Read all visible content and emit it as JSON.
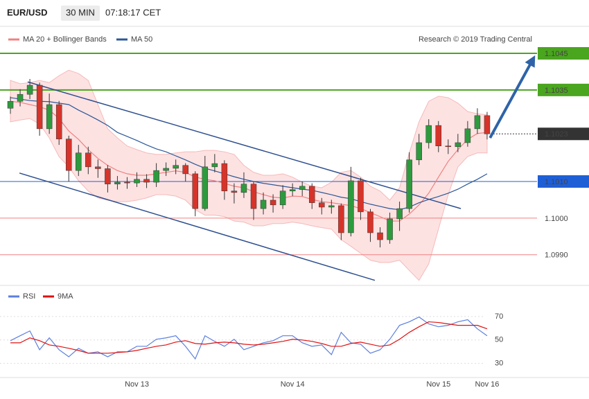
{
  "header": {
    "symbol": "EUR/USD",
    "interval": "30 MIN",
    "time": "07:18:17 CET",
    "credit": "Research © 2019 Trading Central"
  },
  "chart_data": [
    {
      "type": "candlestick",
      "up_color": "#2e9a3e",
      "down_color": "#d6342a",
      "ylim": [
        1.0982,
        1.1052
      ],
      "open": [
        1.103,
        1.10319,
        1.10338,
        1.10363,
        1.10244,
        1.1031,
        1.10216,
        1.1013,
        1.10178,
        1.1014,
        1.10135,
        1.10093,
        1.10098,
        1.10096,
        1.10106,
        1.10098,
        1.1013,
        1.10136,
        1.10144,
        1.10121,
        1.10026,
        1.1014,
        1.10149,
        1.10074,
        1.1007,
        1.10093,
        1.10026,
        1.10049,
        1.10036,
        1.10074,
        1.10078,
        1.10087,
        1.10042,
        1.1003,
        1.10034,
        1.0996,
        1.10102,
        1.10017,
        1.0996,
        1.09941,
        1.09998,
        1.10026,
        1.10159,
        1.10206,
        1.10253,
        1.10197,
        1.10195,
        1.10206,
        1.10244,
        1.1028
      ],
      "high": [
        1.10332,
        1.10352,
        1.1038,
        1.1037,
        1.1034,
        1.1032,
        1.10225,
        1.102,
        1.10195,
        1.1016,
        1.10145,
        1.10115,
        1.10112,
        1.10125,
        1.1012,
        1.1015,
        1.10152,
        1.1016,
        1.1015,
        1.10128,
        1.1017,
        1.10175,
        1.10158,
        1.10095,
        1.10125,
        1.101,
        1.1007,
        1.10065,
        1.1009,
        1.10095,
        1.101,
        1.10095,
        1.10055,
        1.1005,
        1.1004,
        1.1014,
        1.1011,
        1.10025,
        1.09975,
        1.10015,
        1.10045,
        1.1018,
        1.1023,
        1.1027,
        1.10265,
        1.10215,
        1.1023,
        1.10265,
        1.103,
        1.1029
      ],
      "low": [
        1.10285,
        1.10305,
        1.10325,
        1.10225,
        1.1023,
        1.102,
        1.101,
        1.10115,
        1.1012,
        1.1011,
        1.1007,
        1.10078,
        1.1008,
        1.10085,
        1.10082,
        1.10085,
        1.10115,
        1.1012,
        1.101,
        1.10005,
        1.1002,
        1.10125,
        1.1005,
        1.1004,
        1.10055,
        1.09995,
        1.1001,
        1.10015,
        1.10025,
        1.1006,
        1.1006,
        1.10025,
        1.1001,
        1.10012,
        1.0994,
        1.0995,
        1.09995,
        1.09935,
        1.0992,
        1.0993,
        1.09965,
        1.10015,
        1.10145,
        1.1019,
        1.1018,
        1.10175,
        1.1018,
        1.10195,
        1.1023,
        1.10215
      ],
      "close": [
        1.10319,
        1.10338,
        1.10363,
        1.10244,
        1.1031,
        1.10216,
        1.1013,
        1.10178,
        1.1014,
        1.10135,
        1.10093,
        1.10098,
        1.10096,
        1.10106,
        1.10098,
        1.1013,
        1.10136,
        1.10144,
        1.10121,
        1.10026,
        1.1014,
        1.10149,
        1.10074,
        1.1007,
        1.10093,
        1.10026,
        1.10049,
        1.10036,
        1.10074,
        1.10078,
        1.10087,
        1.10042,
        1.1003,
        1.10034,
        1.0996,
        1.10102,
        1.10017,
        1.0996,
        1.09941,
        1.09998,
        1.10026,
        1.10159,
        1.10206,
        1.10253,
        1.10197,
        1.10195,
        1.10206,
        1.10244,
        1.1028,
        1.1023
      ],
      "bands": {
        "name": "MA 20 + Bollinger Bands",
        "color": "#f08080",
        "fill": "#fde2e2",
        "ma": [
          1.10319,
          1.10316,
          1.1031,
          1.10304,
          1.10295,
          1.10272,
          1.10238,
          1.10215,
          1.10187,
          1.10163,
          1.10144,
          1.1013,
          1.10121,
          1.10117,
          1.10117,
          1.10121,
          1.10125,
          1.10129,
          1.10125,
          1.10112,
          1.10106,
          1.10102,
          1.10095,
          1.10087,
          1.10083,
          1.10072,
          1.10064,
          1.10057,
          1.10055,
          1.1006,
          1.10059,
          1.10051,
          1.10045,
          1.10042,
          1.10038,
          1.10034,
          1.10026,
          1.10015,
          1.10004,
          1.09992,
          1.09992,
          1.10011,
          1.10036,
          1.10068,
          1.10112,
          1.10155,
          1.10187,
          1.10215,
          1.10231,
          1.10234
        ],
        "upper": [
          1.10376,
          1.10367,
          1.1037,
          1.10376,
          1.1037,
          1.10389,
          1.10404,
          1.10395,
          1.10376,
          1.1031,
          1.10244,
          1.10219,
          1.10197,
          1.10187,
          1.10178,
          1.10174,
          1.10174,
          1.10178,
          1.10181,
          1.10181,
          1.10185,
          1.10185,
          1.10181,
          1.10174,
          1.10144,
          1.10125,
          1.10117,
          1.10117,
          1.10121,
          1.10112,
          1.10098,
          1.10087,
          1.10083,
          1.10098,
          1.10125,
          1.1013,
          1.10112,
          1.10087,
          1.10074,
          1.10049,
          1.10083,
          1.10178,
          1.10263,
          1.10319,
          1.10333,
          1.10329,
          1.10314,
          1.10291,
          1.10285,
          1.10282
        ],
        "lower": [
          1.10263,
          1.10268,
          1.10272,
          1.10257,
          1.10219,
          1.10168,
          1.1014,
          1.10102,
          1.10074,
          1.10055,
          1.10049,
          1.10045,
          1.10045,
          1.10049,
          1.10055,
          1.10064,
          1.10064,
          1.1006,
          1.10049,
          1.10023,
          1.10008,
          1.10008,
          1.10004,
          1.09992,
          1.09989,
          1.09979,
          1.09979,
          1.09985,
          1.09985,
          1.09989,
          1.09985,
          1.09979,
          1.09974,
          1.0997,
          1.09941,
          1.09923,
          1.09904,
          1.09885,
          1.09879,
          1.09879,
          1.09885,
          1.09857,
          1.0983,
          1.09875,
          1.0997,
          1.10064,
          1.1014,
          1.10168,
          1.10178,
          1.10178
        ]
      },
      "ma50": {
        "name": "MA 50",
        "color": "#2b5797",
        "values": [
          1.10329,
          1.10325,
          1.10321,
          1.10319,
          1.10318,
          1.10314,
          1.1031,
          1.10295,
          1.10282,
          1.10268,
          1.10253,
          1.10234,
          1.10223,
          1.10212,
          1.102,
          1.10189,
          1.10181,
          1.1017,
          1.10159,
          1.10147,
          1.10136,
          1.10129,
          1.10121,
          1.10113,
          1.10106,
          1.101,
          1.10095,
          1.10091,
          1.10087,
          1.10083,
          1.10079,
          1.10076,
          1.1007,
          1.10064,
          1.10057,
          1.10053,
          1.10045,
          1.10038,
          1.10032,
          1.10026,
          1.10023,
          1.1003,
          1.10042,
          1.10051,
          1.10059,
          1.10068,
          1.10079,
          1.10093,
          1.10106,
          1.10121
        ]
      },
      "levels": [
        {
          "value": 1.1045,
          "color": "#4aa51f",
          "kind": "box",
          "line": "solid"
        },
        {
          "value": 1.1035,
          "color": "#4aa51f",
          "kind": "box",
          "line": "solid"
        },
        {
          "value": 1.1023,
          "color": "#333333",
          "kind": "box",
          "line": "dotted"
        },
        {
          "value": 1.101,
          "label": "1.1010",
          "color": "#1f5fd6",
          "kind": "box",
          "line": "thin"
        },
        {
          "value": 1.1,
          "label": "1.1000",
          "color": "#f08080",
          "kind": "text",
          "line": "thin"
        },
        {
          "value": 1.099,
          "label": "1.0990",
          "color": "#f08080",
          "kind": "text",
          "line": "thin"
        }
      ],
      "trend_lines": [
        {
          "x": [
            1.78,
            46.3
          ],
          "y": [
            1.10372,
            1.10026
          ],
          "color": "#2e4f8f"
        },
        {
          "x": [
            0.93,
            37.46
          ],
          "y": [
            1.10123,
            1.0983
          ],
          "color": "#2e4f8f"
        }
      ],
      "arrow": {
        "x": [
          49.3,
          53.8
        ],
        "y": [
          1.10219,
          1.10438
        ],
        "color": "#2e63a8"
      }
    },
    {
      "type": "line",
      "categories": [
        null,
        null,
        null,
        null,
        null,
        null,
        null,
        null,
        null,
        null,
        null,
        null,
        null,
        "Nov 13",
        null,
        null,
        null,
        null,
        null,
        null,
        null,
        null,
        null,
        null,
        null,
        null,
        null,
        null,
        null,
        "Nov 14",
        null,
        null,
        null,
        null,
        null,
        null,
        null,
        null,
        null,
        null,
        null,
        null,
        null,
        null,
        "Nov 15",
        null,
        null,
        null,
        null,
        "Nov 16"
      ],
      "ylim": [
        18,
        80
      ],
      "yticks": [
        30,
        50,
        70
      ],
      "series": [
        {
          "name": "RSI",
          "color": "#5b7fde",
          "values": [
            49.4,
            53.6,
            57.7,
            41.7,
            51.8,
            41.7,
            35.7,
            42.9,
            38.7,
            39.9,
            35.7,
            39.9,
            39.9,
            44.6,
            44.6,
            50.6,
            51.8,
            53.6,
            44.6,
            33.9,
            53.6,
            48.8,
            44.6,
            50.6,
            41.7,
            44.6,
            47.6,
            49.4,
            53.6,
            53.6,
            47.6,
            44.6,
            45.8,
            37.5,
            56.5,
            47.6,
            46.4,
            38.7,
            41.7,
            50.6,
            62.5,
            65.5,
            69.6,
            63.7,
            61.3,
            62.5,
            65.5,
            67.3,
            59.5,
            53.6
          ]
        },
        {
          "name": "9MA",
          "color": "#e01010",
          "values": [
            47.6,
            47.6,
            51.8,
            49.4,
            45.8,
            44.6,
            42.9,
            41.1,
            38.7,
            38.7,
            38.7,
            39.3,
            39.9,
            41.1,
            42.9,
            44.6,
            45.8,
            48.2,
            49.4,
            47.0,
            46.4,
            47.6,
            48.2,
            47.6,
            46.4,
            45.8,
            46.4,
            47.6,
            48.8,
            50.6,
            50.0,
            48.8,
            47.0,
            44.6,
            44.6,
            47.0,
            48.2,
            46.4,
            44.6,
            45.8,
            50.6,
            56.5,
            61.3,
            65.5,
            64.9,
            63.7,
            62.5,
            62.5,
            62.5,
            59.5
          ]
        }
      ]
    }
  ]
}
